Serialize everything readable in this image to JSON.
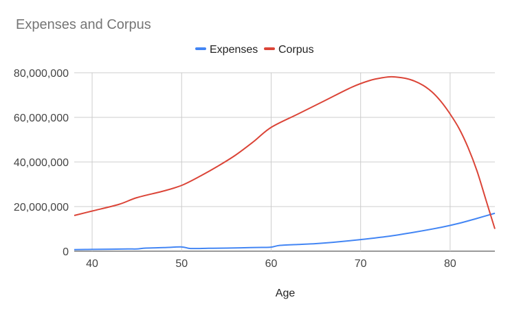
{
  "chart_data": {
    "type": "line",
    "title": "Expenses and Corpus",
    "xlabel": "Age",
    "ylabel": "",
    "xlim": [
      38,
      85
    ],
    "ylim": [
      0,
      80000000
    ],
    "x_ticks": [
      40,
      50,
      60,
      70,
      80
    ],
    "y_ticks": [
      0,
      20000000,
      40000000,
      60000000,
      80000000
    ],
    "x_tick_labels": [
      "40",
      "50",
      "60",
      "70",
      "80"
    ],
    "y_tick_labels": [
      "0",
      "20,000,000",
      "40,000,000",
      "60,000,000",
      "80,000,000"
    ],
    "grid": true,
    "legend_position": "top",
    "series": [
      {
        "name": "Expenses",
        "color": "#4285f4",
        "points": [
          [
            38,
            700000
          ],
          [
            40,
            800000
          ],
          [
            42,
            900000
          ],
          [
            44,
            1000000
          ],
          [
            45,
            1000000
          ],
          [
            46,
            1400000
          ],
          [
            48,
            1600000
          ],
          [
            50,
            1900000
          ],
          [
            51,
            1200000
          ],
          [
            53,
            1300000
          ],
          [
            55,
            1400000
          ],
          [
            57,
            1550000
          ],
          [
            59,
            1700000
          ],
          [
            60,
            1800000
          ],
          [
            61,
            2600000
          ],
          [
            63,
            3000000
          ],
          [
            65,
            3400000
          ],
          [
            67,
            4000000
          ],
          [
            70,
            5200000
          ],
          [
            73,
            6600000
          ],
          [
            76,
            8500000
          ],
          [
            79,
            10700000
          ],
          [
            81,
            12500000
          ],
          [
            83,
            14700000
          ],
          [
            85,
            17000000
          ]
        ]
      },
      {
        "name": "Corpus",
        "color": "#db4437",
        "points": [
          [
            38,
            16000000
          ],
          [
            40,
            18000000
          ],
          [
            43,
            21000000
          ],
          [
            45,
            24000000
          ],
          [
            48,
            27000000
          ],
          [
            50,
            29500000
          ],
          [
            52,
            33500000
          ],
          [
            54,
            38000000
          ],
          [
            56,
            43000000
          ],
          [
            58,
            49000000
          ],
          [
            60,
            55500000
          ],
          [
            63,
            61500000
          ],
          [
            66,
            67500000
          ],
          [
            69,
            73500000
          ],
          [
            71,
            76500000
          ],
          [
            72.5,
            77800000
          ],
          [
            73.5,
            78200000
          ],
          [
            75,
            77500000
          ],
          [
            76,
            76300000
          ],
          [
            77,
            74300000
          ],
          [
            78,
            71300000
          ],
          [
            79,
            67000000
          ],
          [
            80,
            61500000
          ],
          [
            81,
            55000000
          ],
          [
            82,
            46500000
          ],
          [
            83,
            36000000
          ],
          [
            84,
            23000000
          ],
          [
            85,
            10000000
          ]
        ]
      }
    ]
  }
}
